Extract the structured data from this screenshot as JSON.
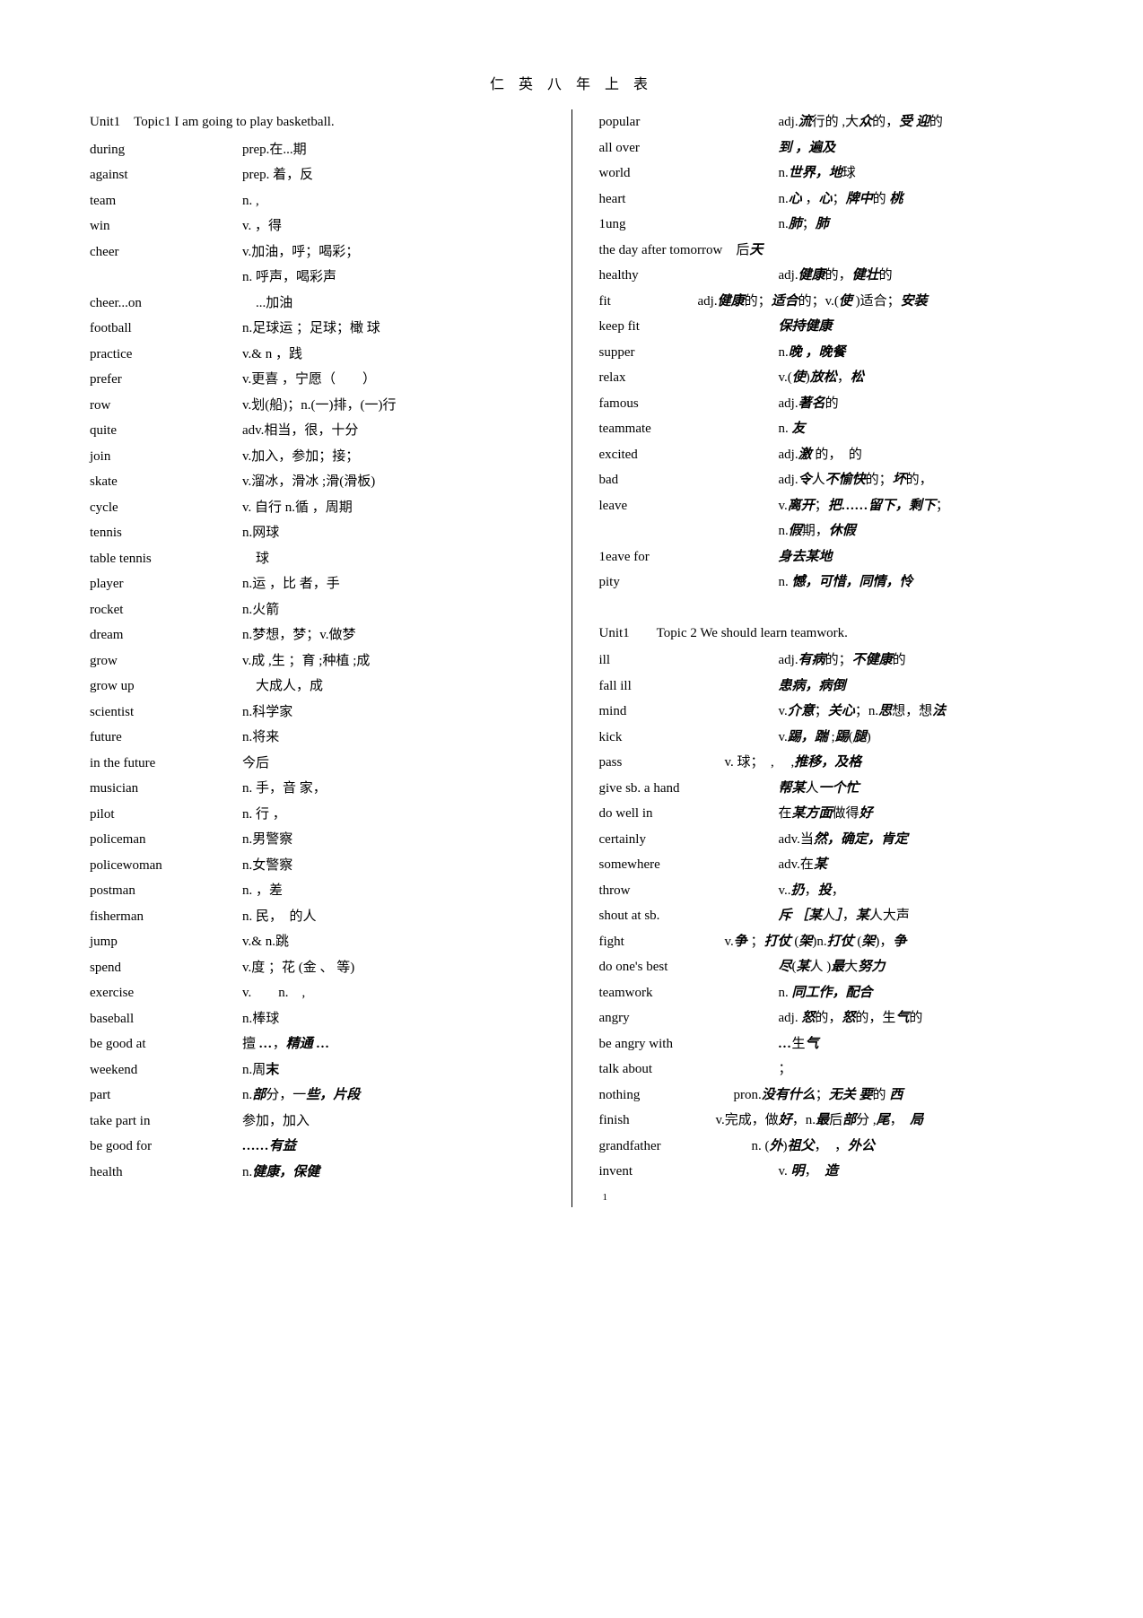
{
  "title": "仁 英 八 年 上 表",
  "pagenum": "1",
  "left": {
    "header": "Unit1　Topic1 I am going to play basketball.",
    "entries": [
      {
        "w": "during",
        "d": [
          {
            "t": "prep.在...期"
          }
        ]
      },
      {
        "w": "against",
        "d": [
          {
            "t": "prep. 着，反"
          }
        ]
      },
      {
        "w": "team",
        "d": [
          {
            "t": "n. ,"
          }
        ]
      },
      {
        "w": "win",
        "d": [
          {
            "t": "v. ，得"
          }
        ]
      },
      {
        "w": "cheer",
        "d": [
          {
            "t": "v.加油，呼；喝彩；"
          }
        ]
      },
      {
        "w": "",
        "d": [
          {
            "t": "n. 呼声，喝彩声"
          }
        ]
      },
      {
        "w": "cheer...on",
        "d": [
          {
            "t": "　...加油"
          }
        ]
      },
      {
        "w": "football",
        "d": [
          {
            "t": "n.足球运 ；足球；橄 球"
          }
        ]
      },
      {
        "w": "practice",
        "d": [
          {
            "t": "v.& n ，践"
          }
        ]
      },
      {
        "w": "prefer",
        "d": [
          {
            "t": "v.更喜 ，宁愿（　　）"
          }
        ]
      },
      {
        "w": "row",
        "d": [
          {
            "t": "v.划(船)；n.(一)排，(一)行"
          }
        ]
      },
      {
        "w": "quite",
        "d": [
          {
            "t": "adv.相当，很，十分"
          }
        ]
      },
      {
        "w": "join",
        "d": [
          {
            "t": "v.加入，参加；接；"
          }
        ]
      },
      {
        "w": "skate",
        "d": [
          {
            "t": "v.溜冰，滑冰 ;滑(滑板)"
          }
        ]
      },
      {
        "w": "cycle",
        "d": [
          {
            "t": "v. 自行 n.循 ，周期"
          }
        ]
      },
      {
        "w": "tennis",
        "d": [
          {
            "t": "n.网球"
          }
        ]
      },
      {
        "w": "table tennis",
        "d": [
          {
            "t": "　球"
          }
        ]
      },
      {
        "w": "player",
        "d": [
          {
            "t": "n.运 ，比 者，手"
          }
        ]
      },
      {
        "w": "rocket",
        "d": [
          {
            "t": "n.火箭"
          }
        ]
      },
      {
        "w": "dream",
        "d": [
          {
            "t": "n.梦想，梦；v.做梦"
          }
        ]
      },
      {
        "w": "grow",
        "d": [
          {
            "t": "v.成 ,生 ；育 ;种植 ;成"
          }
        ]
      },
      {
        "w": "grow up",
        "d": [
          {
            "t": "　大成人，成"
          }
        ]
      },
      {
        "w": "scientist",
        "d": [
          {
            "t": "n.科学家"
          }
        ]
      },
      {
        "w": "future",
        "d": [
          {
            "t": "n.将来"
          }
        ]
      },
      {
        "w": "in the future",
        "d": [
          {
            "t": "今后"
          }
        ]
      },
      {
        "w": "musician",
        "d": [
          {
            "t": "n. 手，音 家，"
          }
        ]
      },
      {
        "w": "pilot",
        "d": [
          {
            "t": "n. 行 ，"
          }
        ]
      },
      {
        "w": "policeman",
        "d": [
          {
            "t": "n.男警察"
          }
        ]
      },
      {
        "w": "policewoman",
        "d": [
          {
            "t": "n.女警察"
          }
        ]
      },
      {
        "w": "postman",
        "d": [
          {
            "t": "n. ，差"
          }
        ]
      },
      {
        "w": "fisherman",
        "d": [
          {
            "t": "n. 民，　的人"
          }
        ]
      },
      {
        "w": "jump",
        "d": [
          {
            "t": "v.& n.跳"
          }
        ]
      },
      {
        "w": "spend",
        "d": [
          {
            "t": "v.度 ；花 (金 、 等)"
          }
        ]
      },
      {
        "w": "exercise",
        "d": [
          {
            "t": "v.　　n.　,"
          }
        ]
      },
      {
        "w": "baseball",
        "d": [
          {
            "t": "n.棒球"
          }
        ]
      },
      {
        "w": "be good at",
        "d": [
          {
            "t": "擅 "
          },
          {
            "t": "…",
            "s": "bi"
          },
          {
            "t": "，"
          },
          {
            "t": "精通",
            "s": "bi"
          },
          {
            "t": " "
          },
          {
            "t": "…",
            "s": "bi"
          }
        ]
      },
      {
        "w": "weekend",
        "d": [
          {
            "t": "n.周"
          },
          {
            "t": "末",
            "s": "bold"
          }
        ]
      },
      {
        "w": "part",
        "d": [
          {
            "t": "n."
          },
          {
            "t": "部",
            "s": "bi"
          },
          {
            "t": "分，一"
          },
          {
            "t": "些，片段",
            "s": "bi"
          }
        ]
      },
      {
        "w": "take part in",
        "d": [
          {
            "t": "参加，加入"
          }
        ]
      },
      {
        "w": "be good for",
        "d": [
          {
            "t": "……有益",
            "s": "bi"
          }
        ]
      },
      {
        "w": "health",
        "d": [
          {
            "t": "n."
          },
          {
            "t": "健康，保健",
            "s": "bi"
          }
        ]
      }
    ]
  },
  "right": {
    "block1": [
      {
        "w": "popular",
        "d": [
          {
            "t": "adj."
          },
          {
            "t": "流",
            "s": "bi"
          },
          {
            "t": "行的 ,大"
          },
          {
            "t": "众",
            "s": "bi"
          },
          {
            "t": "的，"
          },
          {
            "t": "受 迎",
            "s": "bi"
          },
          {
            "t": "的"
          }
        ]
      },
      {
        "w": "all over",
        "d": [
          {
            "t": "到  ，遍及",
            "s": "bi"
          }
        ]
      },
      {
        "w": "world",
        "d": [
          {
            "t": "n."
          },
          {
            "t": "世界，地",
            "s": "bi"
          },
          {
            "t": "球"
          }
        ]
      },
      {
        "w": "heart",
        "d": [
          {
            "t": "n."
          },
          {
            "t": "心 ",
            "s": "bi"
          },
          {
            "t": "，"
          },
          {
            "t": "心",
            "s": "bi"
          },
          {
            "t": "；"
          },
          {
            "t": "牌中",
            "s": "bi"
          },
          {
            "t": "的 "
          },
          {
            "t": "桃",
            "s": "bi"
          }
        ]
      },
      {
        "w": "1ung",
        "d": [
          {
            "t": "n."
          },
          {
            "t": "肺",
            "s": "bi"
          },
          {
            "t": "；"
          },
          {
            "t": "肺",
            "s": "bi"
          }
        ]
      },
      {
        "w": "the day after tomorrow",
        "d": [
          {
            "t": " 后"
          },
          {
            "t": "天",
            "s": "bi"
          }
        ],
        "full": true
      },
      {
        "w": "healthy",
        "d": [
          {
            "t": "adj."
          },
          {
            "t": "健康",
            "s": "bi"
          },
          {
            "t": "的，"
          },
          {
            "t": "健壮",
            "s": "bi"
          },
          {
            "t": "的"
          }
        ]
      },
      {
        "w": "fit",
        "d": [
          {
            "t": "adj."
          },
          {
            "t": "健康",
            "s": "bi"
          },
          {
            "t": "的；"
          },
          {
            "t": "适合",
            "s": "bi"
          },
          {
            "t": "的；v.("
          },
          {
            "t": "使 ",
            "s": "bi"
          },
          {
            "t": ")适合；"
          },
          {
            "t": "安装",
            "s": "bi"
          }
        ],
        "cls": "fitline"
      },
      {
        "w": "keep fit",
        "d": [
          {
            "t": "保持健康",
            "s": "bi"
          }
        ]
      },
      {
        "w": "supper",
        "d": [
          {
            "t": "n."
          },
          {
            "t": "晚  ，晚餐",
            "s": "bi"
          }
        ]
      },
      {
        "w": "relax",
        "d": [
          {
            "t": "v.("
          },
          {
            "t": "使",
            "s": "bi"
          },
          {
            "t": ")"
          },
          {
            "t": "放松",
            "s": "bi"
          },
          {
            "t": "，"
          },
          {
            "t": "松",
            "s": "bi"
          }
        ]
      },
      {
        "w": "famous",
        "d": [
          {
            "t": "adj."
          },
          {
            "t": "著名",
            "s": "bi"
          },
          {
            "t": "的"
          }
        ]
      },
      {
        "w": "teammate",
        "d": [
          {
            "t": "n. "
          },
          {
            "t": "友",
            "s": "bi"
          }
        ]
      },
      {
        "w": "excited",
        "d": [
          {
            "t": "adj."
          },
          {
            "t": "激",
            "s": "bi"
          },
          {
            "t": " 的，　的"
          }
        ]
      },
      {
        "w": "bad",
        "d": [
          {
            "t": "adj."
          },
          {
            "t": "令",
            "s": "bi"
          },
          {
            "t": "人"
          },
          {
            "t": "不愉快",
            "s": "bi"
          },
          {
            "t": "的；"
          },
          {
            "t": "坏",
            "s": "bi"
          },
          {
            "t": "的，"
          }
        ]
      },
      {
        "w": "leave",
        "d": [
          {
            "t": "v."
          },
          {
            "t": "离开",
            "s": "bi"
          },
          {
            "t": "；"
          },
          {
            "t": "把……留下，剩下",
            "s": "bi"
          },
          {
            "t": "；"
          }
        ]
      },
      {
        "w": "",
        "d": [
          {
            "t": "n."
          },
          {
            "t": "假",
            "s": "bi"
          },
          {
            "t": "期，"
          },
          {
            "t": "休假",
            "s": "bi"
          }
        ]
      },
      {
        "w": "1eave for",
        "d": [
          {
            "t": "身去某地",
            "s": "bi"
          }
        ]
      },
      {
        "w": "pity",
        "d": [
          {
            "t": "n. "
          },
          {
            "t": "憾，可惜，同情，怜",
            "s": "bi"
          }
        ]
      }
    ],
    "header2": "Unit1　　Topic 2 We should learn teamwork.",
    "block2": [
      {
        "w": "ill",
        "d": [
          {
            "t": "adj."
          },
          {
            "t": "有病",
            "s": "bi"
          },
          {
            "t": "的；"
          },
          {
            "t": "不健康",
            "s": "bi"
          },
          {
            "t": "的"
          }
        ]
      },
      {
        "w": "fall ill",
        "d": [
          {
            "t": "患病，病倒",
            "s": "bi"
          }
        ]
      },
      {
        "w": "mind",
        "d": [
          {
            "t": "v."
          },
          {
            "t": "介意",
            "s": "bi"
          },
          {
            "t": "；"
          },
          {
            "t": "关心",
            "s": "bi"
          },
          {
            "t": "；n."
          },
          {
            "t": "思",
            "s": "bi"
          },
          {
            "t": "想，想"
          },
          {
            "t": "法",
            "s": "bi"
          }
        ]
      },
      {
        "w": "kick",
        "d": [
          {
            "t": "v."
          },
          {
            "t": "踢，踹 ",
            "s": "bi"
          },
          {
            "t": ";"
          },
          {
            "t": "踢",
            "s": "bi"
          },
          {
            "t": "("
          },
          {
            "t": "腿",
            "s": "bi"
          },
          {
            "t": ")"
          }
        ]
      },
      {
        "w": "pass",
        "d": [
          {
            "t": "v. 球；　, 　,"
          },
          {
            "t": "推移，及格",
            "s": "bi"
          }
        ],
        "cls": "passline"
      },
      {
        "w": "give sb. a hand",
        "d": [
          {
            "t": "帮某",
            "s": "bi"
          },
          {
            "t": "人"
          },
          {
            "t": "一个忙",
            "s": "bi"
          }
        ]
      },
      {
        "w": "do well in",
        "d": [
          {
            "t": "在"
          },
          {
            "t": "某方面",
            "s": "bi"
          },
          {
            "t": "做得"
          },
          {
            "t": "好",
            "s": "bi"
          }
        ]
      },
      {
        "w": "certainly",
        "d": [
          {
            "t": "adv.当"
          },
          {
            "t": "然，确定，肯定",
            "s": "bi"
          }
        ]
      },
      {
        "w": "somewhere",
        "d": [
          {
            "t": "adv.在"
          },
          {
            "t": "某",
            "s": "bi"
          }
        ]
      },
      {
        "w": "throw",
        "d": [
          {
            "t": "v.."
          },
          {
            "t": "扔",
            "s": "bi"
          },
          {
            "t": "，"
          },
          {
            "t": "投",
            "s": "bi"
          },
          {
            "t": "，"
          }
        ]
      },
      {
        "w": "shout at sb.",
        "d": [
          {
            "t": "斥 ［某",
            "s": "bi"
          },
          {
            "t": "人"
          },
          {
            "t": "］",
            "s": "bi"
          },
          {
            "t": "，"
          },
          {
            "t": "某",
            "s": "bi"
          },
          {
            "t": "人大声"
          }
        ]
      },
      {
        "w": "fight",
        "d": [
          {
            "t": "v."
          },
          {
            "t": "争 ",
            "s": "bi"
          },
          {
            "t": "；"
          },
          {
            "t": "打仗 ",
            "s": "bi"
          },
          {
            "t": "("
          },
          {
            "t": "架",
            "s": "bi"
          },
          {
            "t": ")n."
          },
          {
            "t": "打仗 ",
            "s": "bi"
          },
          {
            "t": "("
          },
          {
            "t": "架",
            "s": "bi"
          },
          {
            "t": ")，"
          },
          {
            "t": "争",
            "s": "bi"
          }
        ],
        "cls": "passline"
      },
      {
        "w": "do one's best",
        "d": [
          {
            "t": "尽",
            "s": "bi"
          },
          {
            "t": "("
          },
          {
            "t": "某",
            "s": "bi"
          },
          {
            "t": "人 )"
          },
          {
            "t": "最",
            "s": "bi"
          },
          {
            "t": "大"
          },
          {
            "t": "努力",
            "s": "bi"
          }
        ]
      },
      {
        "w": "teamwork",
        "d": [
          {
            "t": "n. "
          },
          {
            "t": "同工作，配合",
            "s": "bi"
          }
        ]
      },
      {
        "w": "angry",
        "d": [
          {
            "t": "adj. "
          },
          {
            "t": "怒",
            "s": "bi"
          },
          {
            "t": "的，"
          },
          {
            "t": "怒",
            "s": "bi"
          },
          {
            "t": "的，生"
          },
          {
            "t": "气",
            "s": "bi"
          },
          {
            "t": "的"
          }
        ]
      },
      {
        "w": "be angry with",
        "d": [
          {
            "t": "…",
            "s": "bi"
          },
          {
            "t": "生"
          },
          {
            "t": "气",
            "s": "bi"
          }
        ]
      },
      {
        "w": "talk about",
        "d": [
          {
            "t": "；"
          }
        ]
      },
      {
        "w": "nothing",
        "d": [
          {
            "t": "pron."
          },
          {
            "t": "没有什么",
            "s": "bi"
          },
          {
            "t": "；"
          },
          {
            "t": "无关 要",
            "s": "bi"
          },
          {
            "t": "的 "
          },
          {
            "t": "西",
            "s": "bi"
          }
        ],
        "cls": "nothingline"
      },
      {
        "w": "finish",
        "d": [
          {
            "t": "v.完成，做"
          },
          {
            "t": "好",
            "s": "bi"
          },
          {
            "t": "，n."
          },
          {
            "t": "最",
            "s": "bi"
          },
          {
            "t": "后"
          },
          {
            "t": "部",
            "s": "bi"
          },
          {
            "t": "分 ,"
          },
          {
            "t": "尾",
            "s": "bi"
          },
          {
            "t": "，　"
          },
          {
            "t": "局",
            "s": "bi"
          }
        ],
        "cls": "finishline"
      },
      {
        "w": "grandfather",
        "d": [
          {
            "t": "n. ("
          },
          {
            "t": "外",
            "s": "bi"
          },
          {
            "t": ")"
          },
          {
            "t": "祖父",
            "s": "bi"
          },
          {
            "t": "，　，"
          },
          {
            "t": "外公",
            "s": "bi"
          }
        ],
        "cls": "gfline"
      },
      {
        "w": "invent",
        "d": [
          {
            "t": "v. "
          },
          {
            "t": "明",
            "s": "bi"
          },
          {
            "t": "，　"
          },
          {
            "t": "造",
            "s": "bi"
          }
        ]
      }
    ]
  }
}
